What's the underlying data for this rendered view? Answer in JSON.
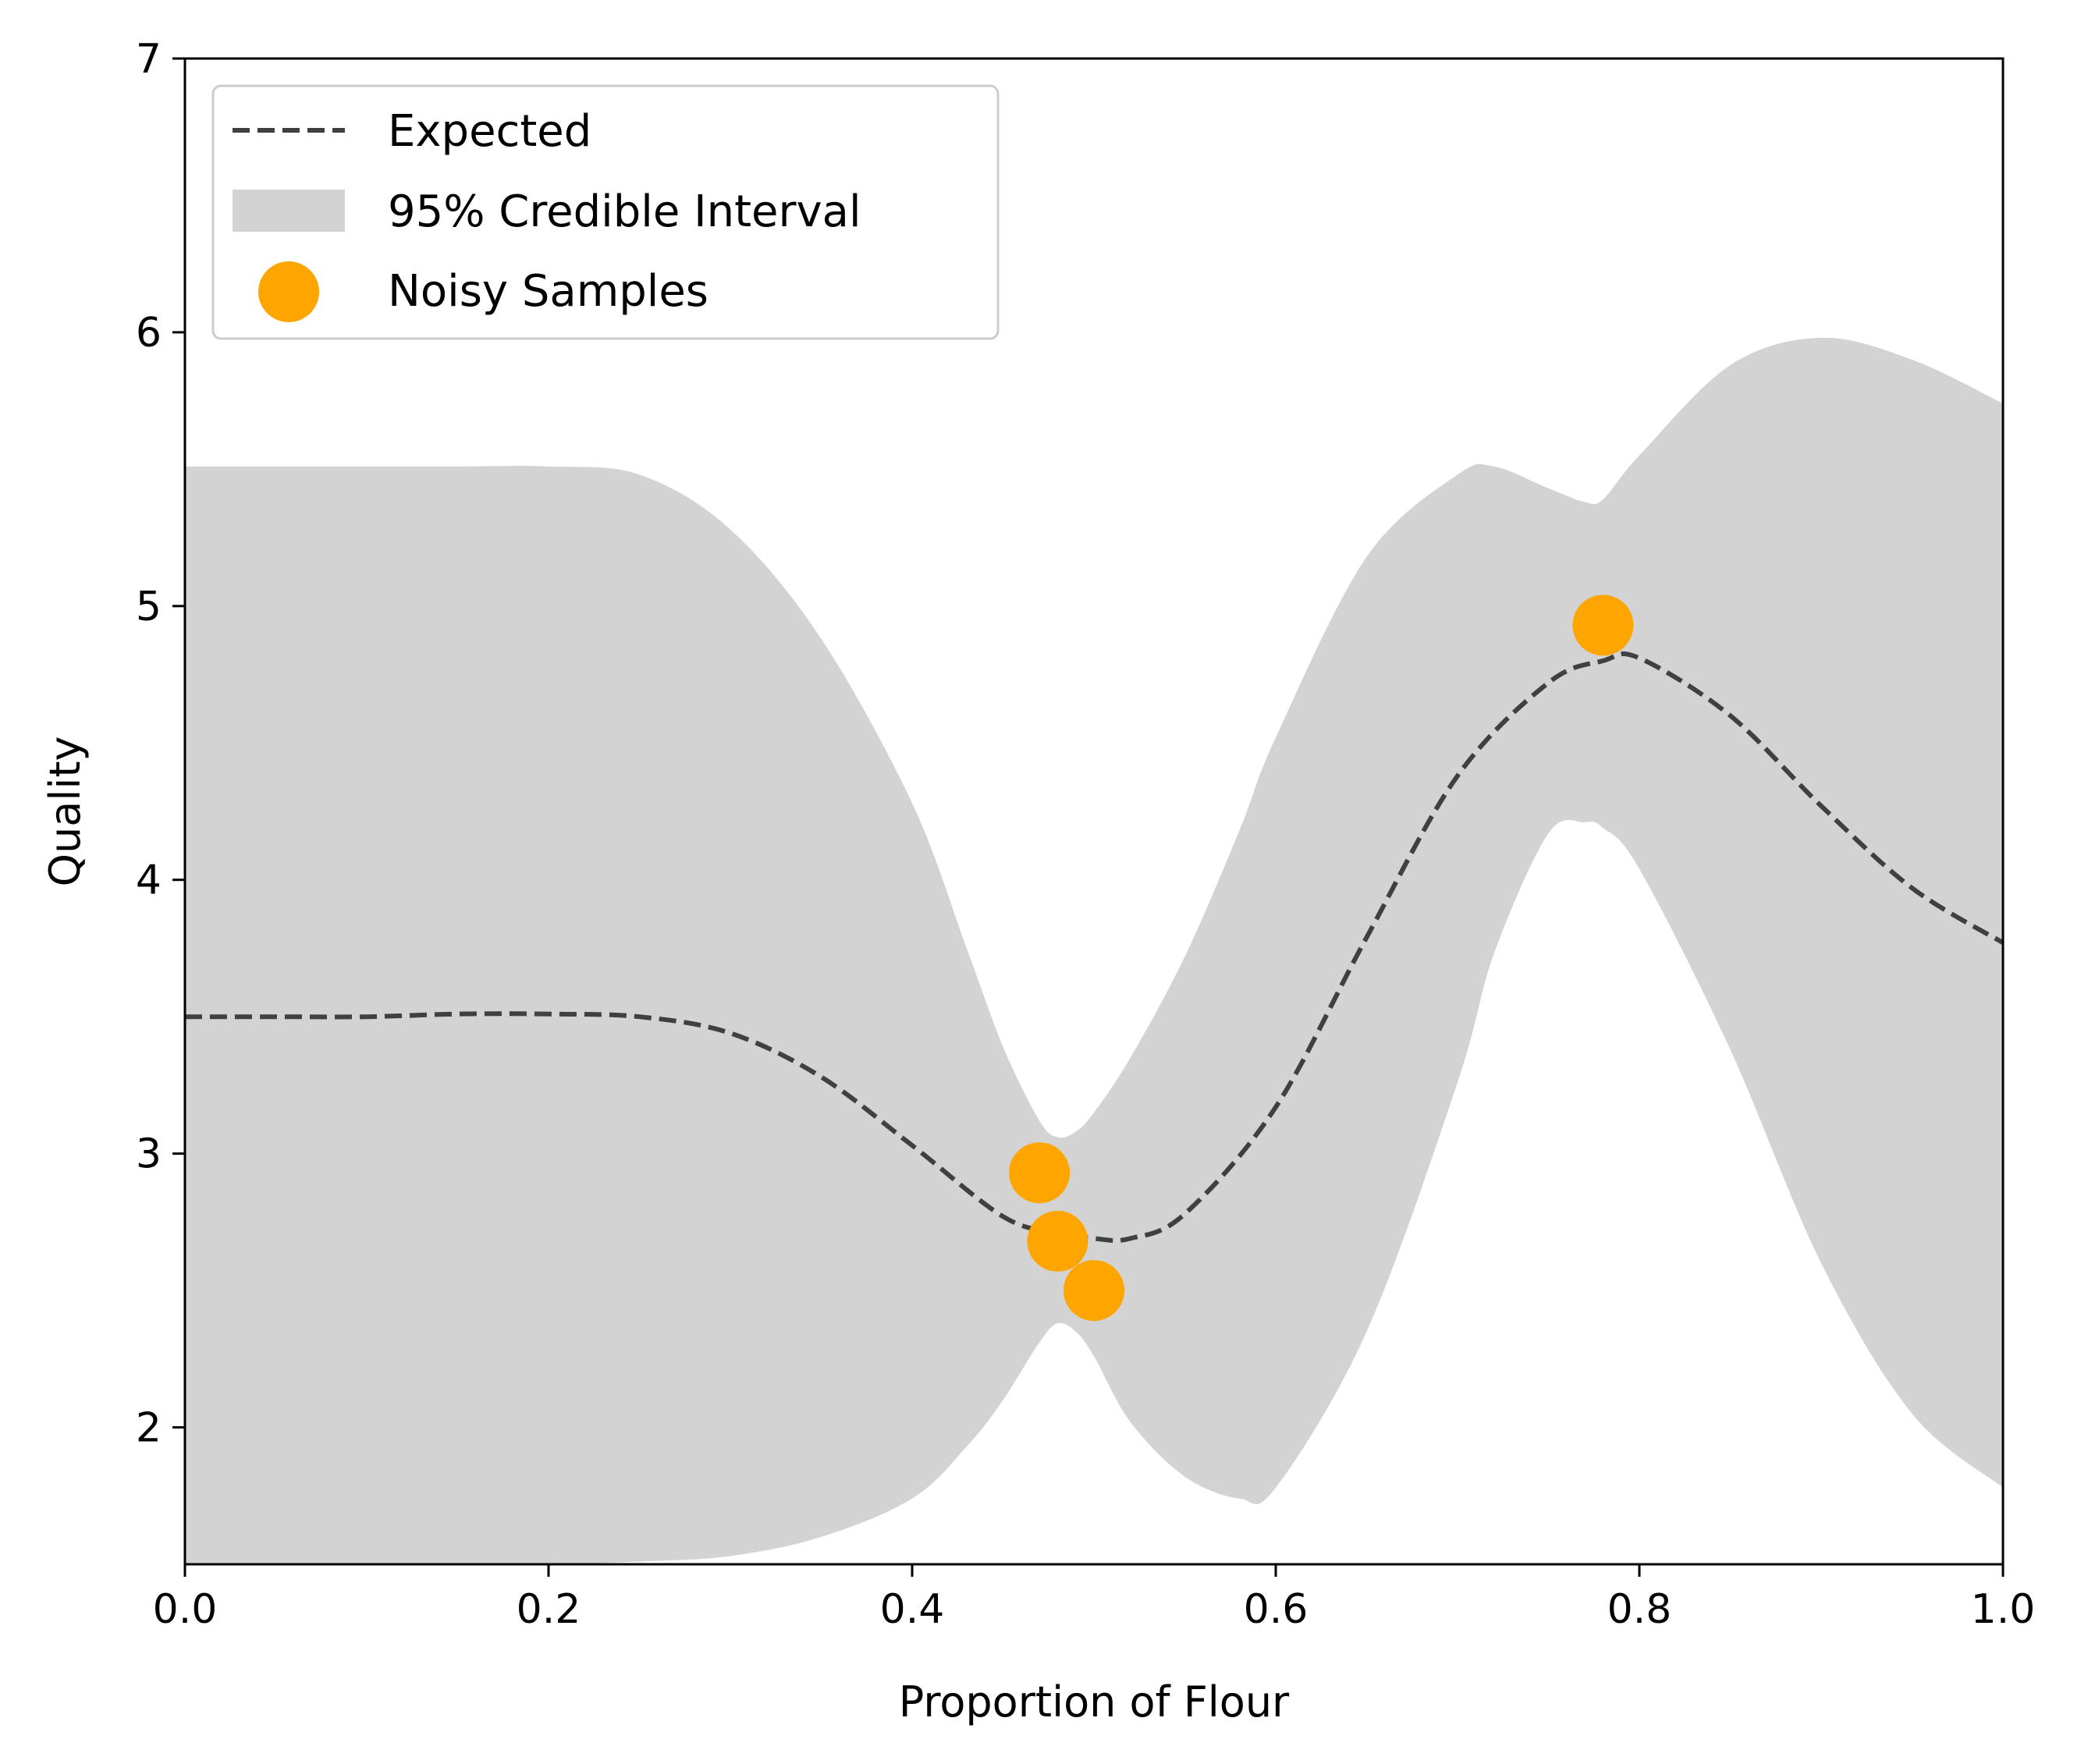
{
  "chart_data": {
    "type": "line",
    "title": "",
    "xlabel": "Proportion of Flour",
    "ylabel": "Quality",
    "xlim": [
      0.0,
      1.0
    ],
    "ylim": [
      1.5,
      7.0
    ],
    "x_ticks": [
      0.0,
      0.2,
      0.4,
      0.6,
      0.8,
      1.0
    ],
    "x_tick_labels": [
      "0.0",
      "0.2",
      "0.4",
      "0.6",
      "0.8",
      "1.0"
    ],
    "y_ticks": [
      2,
      3,
      4,
      5,
      6,
      7
    ],
    "y_tick_labels": [
      "2",
      "3",
      "4",
      "5",
      "6",
      "7"
    ],
    "grid": false,
    "legend": {
      "position": "top-left",
      "entries": [
        {
          "label": "Expected",
          "kind": "dashed-line",
          "color": "#404040"
        },
        {
          "label": "95% Credible Interval",
          "kind": "band",
          "color": "#d3d3d3"
        },
        {
          "label": "Noisy Samples",
          "kind": "marker",
          "color": "#ffa500"
        }
      ]
    },
    "series": [
      {
        "name": "Expected",
        "style": "dashed",
        "color": "#404040",
        "x": [
          0.0,
          0.05,
          0.1,
          0.15,
          0.2,
          0.25,
          0.3,
          0.35,
          0.4,
          0.45,
          0.48,
          0.5,
          0.52,
          0.55,
          0.6,
          0.65,
          0.7,
          0.75,
          0.78,
          0.8,
          0.85,
          0.9,
          0.95,
          1.0
        ],
        "y": [
          3.5,
          3.5,
          3.5,
          3.51,
          3.51,
          3.5,
          3.44,
          3.28,
          3.03,
          2.77,
          2.71,
          2.69,
          2.69,
          2.78,
          3.17,
          3.79,
          4.38,
          4.72,
          4.8,
          4.81,
          4.6,
          4.27,
          3.97,
          3.77
        ]
      }
    ],
    "credible_interval": {
      "name": "95% Credible Interval",
      "color": "#d3d3d3",
      "x": [
        0.0,
        0.05,
        0.1,
        0.15,
        0.2,
        0.25,
        0.3,
        0.35,
        0.4,
        0.43,
        0.45,
        0.47,
        0.48,
        0.49,
        0.5,
        0.52,
        0.55,
        0.58,
        0.6,
        0.65,
        0.7,
        0.72,
        0.75,
        0.77,
        0.78,
        0.8,
        0.85,
        0.9,
        0.95,
        1.0
      ],
      "upper": [
        5.51,
        5.51,
        5.51,
        5.51,
        5.51,
        5.48,
        5.28,
        4.88,
        4.28,
        3.75,
        3.39,
        3.12,
        3.06,
        3.08,
        3.15,
        3.35,
        3.72,
        4.18,
        4.52,
        5.18,
        5.48,
        5.51,
        5.43,
        5.38,
        5.39,
        5.55,
        5.88,
        5.98,
        5.9,
        5.74
      ],
      "lower": [
        1.5,
        1.5,
        1.5,
        1.5,
        1.5,
        1.51,
        1.53,
        1.6,
        1.74,
        1.93,
        2.1,
        2.31,
        2.38,
        2.35,
        2.26,
        2.02,
        1.82,
        1.74,
        1.78,
        2.35,
        3.26,
        3.73,
        4.17,
        4.21,
        4.19,
        4.04,
        3.38,
        2.6,
        2.05,
        1.78
      ]
    },
    "scatter": {
      "name": "Noisy Samples",
      "color": "#ffa500",
      "x": [
        0.47,
        0.48,
        0.5,
        0.78
      ],
      "y": [
        2.93,
        2.68,
        2.5,
        4.93
      ]
    }
  }
}
